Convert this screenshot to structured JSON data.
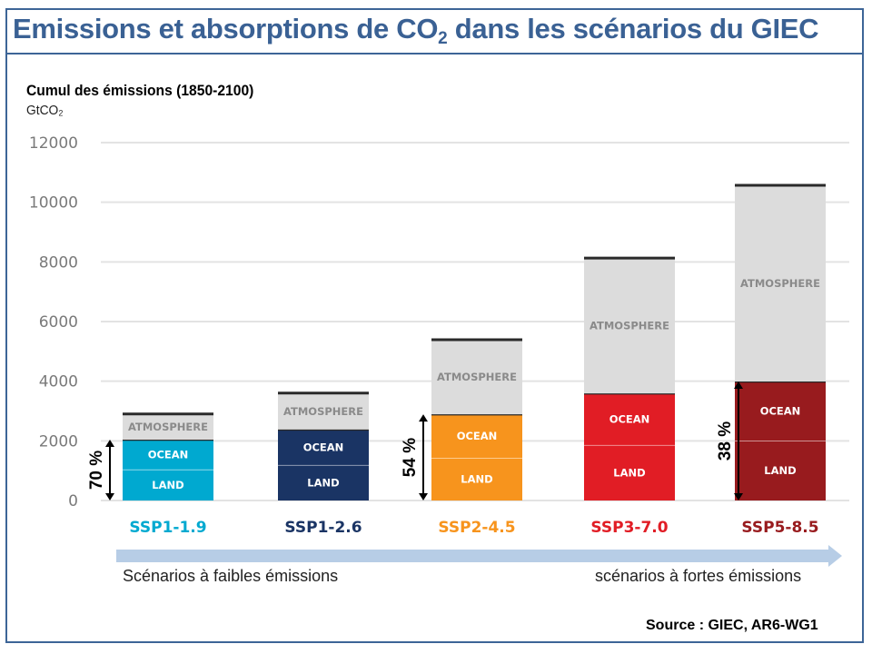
{
  "title_main": "Emissions et absorptions de CO",
  "title_sub": "2",
  "title_tail": " dans les scénarios du GIEC",
  "axis_title": "Cumul des émissions (1850-2100)",
  "axis_unit": "GtCO₂",
  "scale_arrow": {
    "left_label": "Scénarios à faibles émissions",
    "right_label": "scénarios à fortes émissions",
    "color": "#b7cde6"
  },
  "source": "Source : GIEC, AR6-WG1",
  "chart_data": {
    "type": "bar",
    "stacked": true,
    "title": "Emissions et absorptions de CO2 dans les scénarios du GIEC",
    "ylabel": "Cumul des émissions (1850-2100) GtCO2",
    "xlabel": "",
    "ylim": [
      0,
      12000
    ],
    "yticks": [
      0,
      2000,
      4000,
      6000,
      8000,
      10000,
      12000
    ],
    "grid": true,
    "categories": [
      "SSP1-1.9",
      "SSP1-2.6",
      "SSP2-4.5",
      "SSP3-7.0",
      "SSP5-8.5"
    ],
    "category_colors": [
      "#00a9d0",
      "#1a3464",
      "#f7941d",
      "#e11d25",
      "#981b1e"
    ],
    "series": [
      {
        "name": "LAND",
        "values": [
          1040,
          1190,
          1430,
          1860,
          2010
        ]
      },
      {
        "name": "OCEAN",
        "values": [
          1000,
          1190,
          1460,
          1730,
          1980
        ]
      },
      {
        "name": "ATMOSPHERE",
        "values": [
          860,
          1220,
          2500,
          4540,
          6580
        ],
        "color": "#dcdcdc"
      }
    ],
    "totals": [
      2900,
      3600,
      5390,
      8130,
      10570
    ],
    "annotations": [
      {
        "category": "SSP1-1.9",
        "label": "70 %",
        "spans": "LAND+OCEAN"
      },
      {
        "category": "SSP2-4.5",
        "label": "54 %",
        "spans": "LAND+OCEAN"
      },
      {
        "category": "SSP5-8.5",
        "label": "38 %",
        "spans": "LAND+OCEAN"
      }
    ]
  }
}
